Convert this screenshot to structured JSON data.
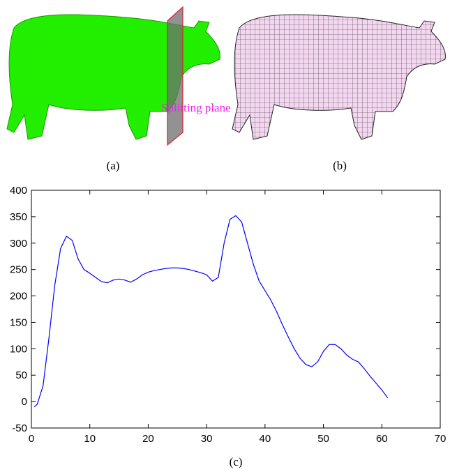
{
  "panels": [
    {
      "label": "(a)",
      "annotation": "Splitting plane"
    },
    {
      "label": "(b)"
    }
  ],
  "chart_data": {
    "type": "line",
    "caption": "(c)",
    "x": [
      0.5,
      1,
      2,
      3,
      4,
      5,
      6,
      7,
      8,
      9,
      10,
      11,
      12,
      13,
      14,
      15,
      16,
      17,
      18,
      19,
      20,
      21,
      22,
      23,
      24,
      25,
      26,
      27,
      28,
      29,
      30,
      31,
      32,
      33,
      34,
      35,
      36,
      37,
      38,
      39,
      40,
      41,
      42,
      43,
      44,
      45,
      46,
      47,
      48,
      49,
      50,
      51,
      52,
      53,
      54,
      55,
      56,
      57,
      58,
      59,
      60,
      61
    ],
    "values": [
      -10,
      -5,
      30,
      120,
      220,
      290,
      313,
      305,
      270,
      250,
      243,
      235,
      227,
      225,
      230,
      232,
      230,
      226,
      232,
      240,
      245,
      248,
      250,
      252,
      253,
      253,
      252,
      250,
      247,
      244,
      240,
      228,
      235,
      300,
      345,
      352,
      340,
      300,
      260,
      228,
      210,
      192,
      170,
      145,
      122,
      100,
      82,
      70,
      66,
      75,
      95,
      108,
      108,
      100,
      88,
      80,
      75,
      62,
      48,
      35,
      22,
      7
    ],
    "color": "#0000ff",
    "xlim": [
      0,
      70
    ],
    "xticks": [
      0,
      10,
      20,
      30,
      40,
      50,
      60,
      70
    ],
    "ylim": [
      -50,
      400
    ],
    "yticks": [
      -50,
      0,
      50,
      100,
      150,
      200,
      250,
      300,
      350,
      400
    ]
  }
}
